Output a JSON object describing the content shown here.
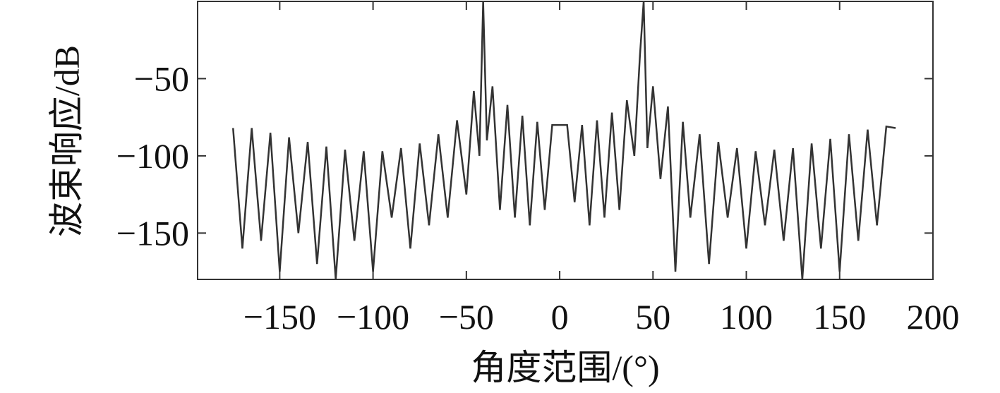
{
  "chart_data": {
    "type": "line",
    "xlabel": "角度范围/(°)",
    "ylabel": "波束响应/dB",
    "xlim": [
      -194,
      200
    ],
    "ylim": [
      -180,
      0
    ],
    "xticks": [
      {
        "value": -150,
        "label": "−150"
      },
      {
        "value": -100,
        "label": "−100"
      },
      {
        "value": -50,
        "label": "−50"
      },
      0,
      50,
      100,
      150,
      200
    ],
    "yticks": [
      {
        "value": -50,
        "label": "−50"
      },
      {
        "value": -100,
        "label": "−100"
      },
      {
        "value": -150,
        "label": "−150"
      }
    ],
    "color": "#333333",
    "x": [
      -175,
      -170,
      -165,
      -160,
      -155,
      -150,
      -145,
      -140,
      -135,
      -130,
      -125,
      -120,
      -115,
      -110,
      -105,
      -100,
      -95,
      -90,
      -85,
      -80,
      -75,
      -70,
      -65,
      -60,
      -55,
      -50,
      -46,
      -43,
      -41,
      -39,
      -36,
      -32,
      -28,
      -24,
      -20,
      -16,
      -12,
      -8,
      -4,
      0,
      4,
      8,
      12,
      16,
      20,
      24,
      28,
      32,
      36,
      40,
      43,
      45,
      47,
      50,
      54,
      58,
      62,
      66,
      70,
      75,
      80,
      85,
      90,
      95,
      100,
      105,
      110,
      115,
      120,
      125,
      130,
      135,
      140,
      145,
      150,
      155,
      160,
      165,
      170,
      175,
      180
    ],
    "values": [
      -82,
      -160,
      -82,
      -155,
      -85,
      -175,
      -88,
      -150,
      -91,
      -170,
      -94,
      -180,
      -96,
      -155,
      -97,
      -175,
      -97,
      -140,
      -95,
      -160,
      -92,
      -145,
      -86,
      -140,
      -77,
      -125,
      -58,
      -100,
      0,
      -90,
      -55,
      -135,
      -67,
      -140,
      -74,
      -145,
      -78,
      -135,
      -80,
      -80,
      -80,
      -130,
      -80,
      -145,
      -77,
      -140,
      -72,
      -135,
      -64,
      -100,
      -35,
      0,
      -95,
      -55,
      -115,
      -68,
      -175,
      -78,
      -140,
      -86,
      -170,
      -91,
      -140,
      -95,
      -160,
      -97,
      -145,
      -96,
      -155,
      -95,
      -180,
      -92,
      -160,
      -89,
      -175,
      -86,
      -155,
      -83,
      -145,
      -81,
      -82
    ]
  }
}
